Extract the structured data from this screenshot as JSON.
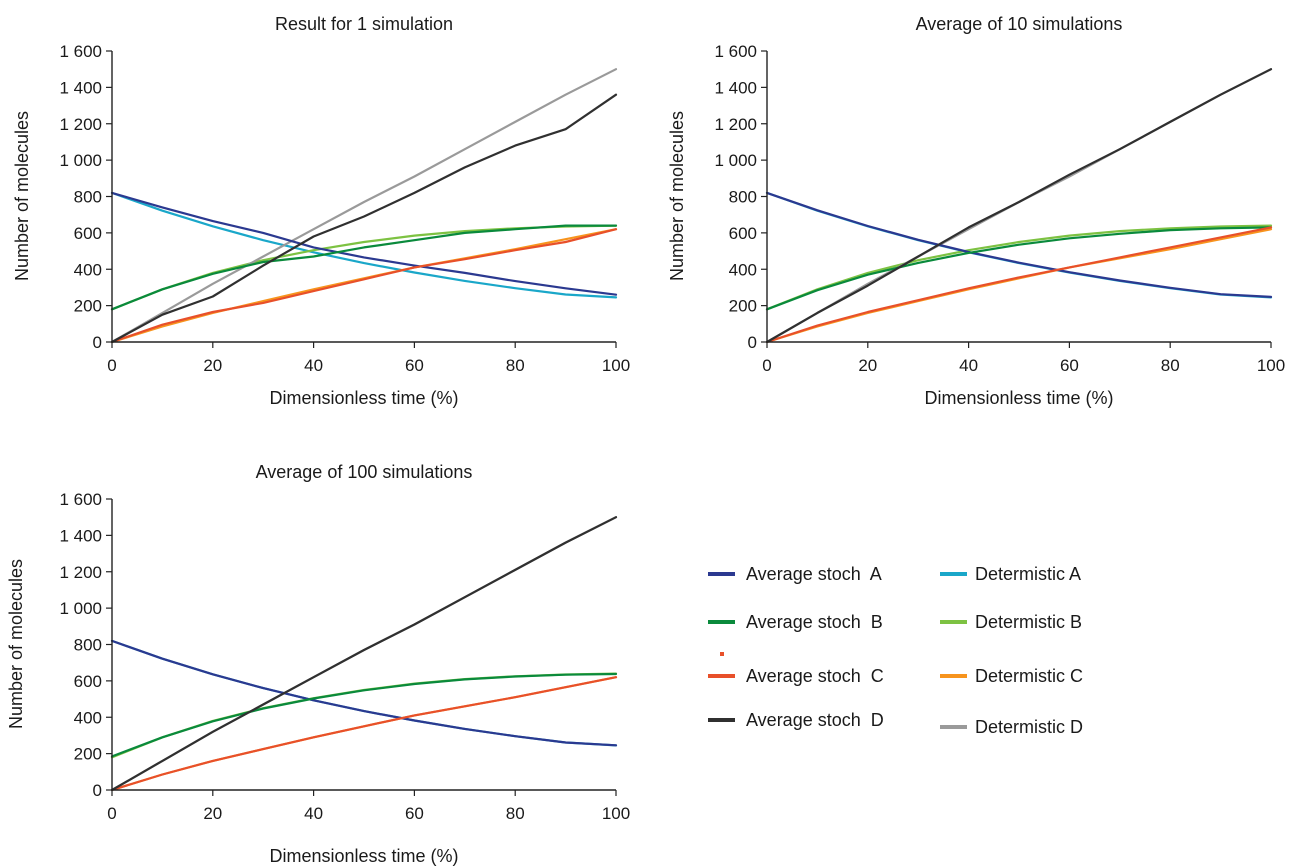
{
  "chart_data": [
    {
      "type": "line",
      "title": "Result for 1 simulation",
      "xlabel": "Dimensionless time (%)",
      "ylabel": "Number of molecules",
      "xlim": [
        0,
        100
      ],
      "ylim": [
        0,
        1600
      ],
      "xticks": [
        "0",
        "20",
        "40",
        "60",
        "80",
        "100"
      ],
      "yticks": [
        "0",
        "200",
        "400",
        "600",
        "800",
        "1 000",
        "1 200",
        "1 400",
        "1 600"
      ],
      "grid": false,
      "series": [
        {
          "name": "Average stoch A",
          "color": "#2b3990",
          "x": [
            0,
            10,
            20,
            30,
            40,
            50,
            60,
            70,
            80,
            90,
            100
          ],
          "y": [
            820,
            740,
            665,
            600,
            520,
            465,
            420,
            380,
            335,
            295,
            260
          ]
        },
        {
          "name": "Average stoch B",
          "color": "#0a8a3c",
          "x": [
            0,
            10,
            20,
            30,
            40,
            50,
            60,
            70,
            80,
            90,
            100
          ],
          "y": [
            180,
            290,
            375,
            440,
            470,
            520,
            560,
            600,
            620,
            640,
            640
          ]
        },
        {
          "name": "Average stoch C",
          "color": "#e8502a",
          "x": [
            0,
            10,
            20,
            30,
            40,
            50,
            60,
            70,
            80,
            90,
            100
          ],
          "y": [
            0,
            95,
            165,
            215,
            280,
            345,
            410,
            455,
            505,
            550,
            620
          ]
        },
        {
          "name": "Average stoch D",
          "color": "#303030",
          "x": [
            0,
            10,
            20,
            30,
            40,
            50,
            60,
            70,
            80,
            90,
            100
          ],
          "y": [
            0,
            150,
            250,
            420,
            580,
            690,
            820,
            960,
            1080,
            1170,
            1360
          ]
        },
        {
          "name": "Determistic A",
          "color": "#1aa7c9",
          "x": [
            0,
            10,
            20,
            30,
            40,
            50,
            60,
            70,
            80,
            90,
            100
          ],
          "y": [
            820,
            722,
            636,
            560,
            493,
            434,
            382,
            336,
            296,
            261,
            245
          ]
        },
        {
          "name": "Determistic B",
          "color": "#7dc242",
          "x": [
            0,
            10,
            20,
            30,
            40,
            50,
            60,
            70,
            80,
            90,
            100
          ],
          "y": [
            180,
            290,
            380,
            450,
            505,
            550,
            585,
            610,
            625,
            635,
            640
          ]
        },
        {
          "name": "Determistic C",
          "color": "#f7941d",
          "x": [
            0,
            10,
            20,
            30,
            40,
            50,
            60,
            70,
            80,
            90,
            100
          ],
          "y": [
            0,
            85,
            160,
            225,
            290,
            350,
            410,
            460,
            510,
            565,
            620
          ]
        },
        {
          "name": "Determistic D",
          "color": "#9a9a9a",
          "x": [
            0,
            10,
            20,
            30,
            40,
            50,
            60,
            70,
            80,
            90,
            100
          ],
          "y": [
            0,
            160,
            320,
            470,
            620,
            770,
            910,
            1060,
            1210,
            1360,
            1500
          ]
        }
      ]
    },
    {
      "type": "line",
      "title": "Average of 10 simulations",
      "xlabel": "Dimensionless time (%)",
      "ylabel": "Number of molecules",
      "xlim": [
        0,
        100
      ],
      "ylim": [
        0,
        1600
      ],
      "xticks": [
        "0",
        "20",
        "40",
        "60",
        "80",
        "100"
      ],
      "yticks": [
        "0",
        "200",
        "400",
        "600",
        "800",
        "1 000",
        "1 200",
        "1 400",
        "1 600"
      ],
      "grid": false,
      "series": [
        {
          "name": "Average stoch A",
          "color": "#2b3990",
          "x": [
            0,
            10,
            20,
            30,
            40,
            50,
            60,
            70,
            80,
            90,
            100
          ],
          "y": [
            820,
            724,
            638,
            562,
            495,
            436,
            384,
            338,
            298,
            263,
            248
          ]
        },
        {
          "name": "Average stoch B",
          "color": "#0a8a3c",
          "x": [
            0,
            10,
            20,
            30,
            40,
            50,
            60,
            70,
            80,
            90,
            100
          ],
          "y": [
            180,
            285,
            370,
            435,
            490,
            535,
            570,
            595,
            615,
            625,
            630
          ]
        },
        {
          "name": "Average stoch C",
          "color": "#e8502a",
          "x": [
            0,
            10,
            20,
            30,
            40,
            50,
            60,
            70,
            80,
            90,
            100
          ],
          "y": [
            0,
            90,
            165,
            230,
            295,
            355,
            410,
            465,
            520,
            575,
            630
          ]
        },
        {
          "name": "Average stoch D",
          "color": "#303030",
          "x": [
            0,
            10,
            20,
            30,
            40,
            50,
            60,
            70,
            80,
            90,
            100
          ],
          "y": [
            0,
            160,
            310,
            470,
            630,
            770,
            920,
            1060,
            1210,
            1360,
            1500
          ]
        },
        {
          "name": "Determistic A",
          "color": "#1aa7c9",
          "x": [
            0,
            10,
            20,
            30,
            40,
            50,
            60,
            70,
            80,
            90,
            100
          ],
          "y": [
            820,
            722,
            636,
            560,
            493,
            434,
            382,
            336,
            296,
            261,
            245
          ]
        },
        {
          "name": "Determistic B",
          "color": "#7dc242",
          "x": [
            0,
            10,
            20,
            30,
            40,
            50,
            60,
            70,
            80,
            90,
            100
          ],
          "y": [
            180,
            290,
            380,
            450,
            505,
            550,
            585,
            610,
            625,
            635,
            640
          ]
        },
        {
          "name": "Determistic C",
          "color": "#f7941d",
          "x": [
            0,
            10,
            20,
            30,
            40,
            50,
            60,
            70,
            80,
            90,
            100
          ],
          "y": [
            0,
            85,
            160,
            225,
            290,
            350,
            410,
            460,
            510,
            565,
            620
          ]
        },
        {
          "name": "Determistic D",
          "color": "#9a9a9a",
          "x": [
            0,
            10,
            20,
            30,
            40,
            50,
            60,
            70,
            80,
            90,
            100
          ],
          "y": [
            0,
            160,
            320,
            470,
            620,
            770,
            910,
            1060,
            1210,
            1360,
            1500
          ]
        }
      ]
    },
    {
      "type": "line",
      "title": "Average of 100 simulations",
      "xlabel": "Dimensionless time (%)",
      "ylabel": "Number of molecules",
      "xlim": [
        0,
        100
      ],
      "ylim": [
        0,
        1600
      ],
      "xticks": [
        "0",
        "20",
        "40",
        "60",
        "80",
        "100"
      ],
      "yticks": [
        "0",
        "200",
        "400",
        "600",
        "800",
        "1 000",
        "1 200",
        "1 400",
        "1 600"
      ],
      "grid": false,
      "series": [
        {
          "name": "Average stoch A",
          "color": "#2b3990",
          "x": [
            0,
            10,
            20,
            30,
            40,
            50,
            60,
            70,
            80,
            90,
            100
          ],
          "y": [
            820,
            722,
            636,
            560,
            493,
            434,
            382,
            336,
            296,
            261,
            246
          ]
        },
        {
          "name": "Average stoch B",
          "color": "#0a8a3c",
          "x": [
            0,
            10,
            20,
            30,
            40,
            50,
            60,
            70,
            80,
            90,
            100
          ],
          "y": [
            185,
            290,
            378,
            448,
            503,
            548,
            583,
            608,
            624,
            634,
            638
          ]
        },
        {
          "name": "Average stoch C",
          "color": "#e8502a",
          "x": [
            0,
            10,
            20,
            30,
            40,
            50,
            60,
            70,
            80,
            90,
            100
          ],
          "y": [
            0,
            85,
            160,
            225,
            290,
            350,
            410,
            460,
            510,
            565,
            620
          ]
        },
        {
          "name": "Average stoch D",
          "color": "#303030",
          "x": [
            0,
            10,
            20,
            30,
            40,
            50,
            60,
            70,
            80,
            90,
            100
          ],
          "y": [
            0,
            160,
            320,
            470,
            620,
            770,
            910,
            1060,
            1210,
            1360,
            1500
          ]
        },
        {
          "name": "Determistic A",
          "color": "#1aa7c9",
          "x": [
            0,
            10,
            20,
            30,
            40,
            50,
            60,
            70,
            80,
            90,
            100
          ],
          "y": [
            820,
            722,
            636,
            560,
            493,
            434,
            382,
            336,
            296,
            261,
            245
          ]
        },
        {
          "name": "Determistic B",
          "color": "#7dc242",
          "x": [
            0,
            10,
            20,
            30,
            40,
            50,
            60,
            70,
            80,
            90,
            100
          ],
          "y": [
            180,
            290,
            380,
            450,
            505,
            550,
            585,
            610,
            625,
            635,
            640
          ]
        },
        {
          "name": "Determistic C",
          "color": "#f7941d",
          "x": [
            0,
            10,
            20,
            30,
            40,
            50,
            60,
            70,
            80,
            90,
            100
          ],
          "y": [
            0,
            85,
            160,
            225,
            290,
            350,
            410,
            460,
            510,
            565,
            620
          ]
        },
        {
          "name": "Determistic D",
          "color": "#9a9a9a",
          "x": [
            0,
            10,
            20,
            30,
            40,
            50,
            60,
            70,
            80,
            90,
            100
          ],
          "y": [
            0,
            160,
            320,
            470,
            620,
            770,
            910,
            1060,
            1210,
            1360,
            1500
          ]
        }
      ]
    }
  ],
  "legend": {
    "columns": [
      [
        "Average stoch  A",
        "Average stoch  B",
        "Average stoch  C",
        "Average stoch  D"
      ],
      [
        "Determistic A",
        "Determistic B",
        "Determistic C",
        "Determistic D"
      ]
    ],
    "colors": [
      [
        "#2b3990",
        "#0a8a3c",
        "#e8502a",
        "#303030"
      ],
      [
        "#1aa7c9",
        "#7dc242",
        "#f7941d",
        "#9a9a9a"
      ]
    ]
  }
}
